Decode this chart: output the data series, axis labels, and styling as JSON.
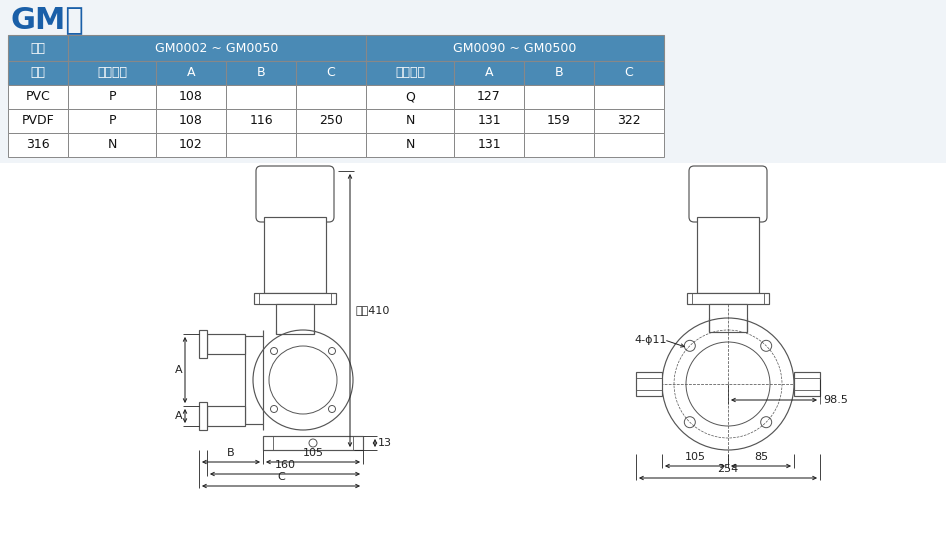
{
  "title": "GM泵",
  "title_color": "#1a5fa8",
  "title_fontsize": 22,
  "bg_color": "#f0f4f8",
  "table_header_bg": "#4a8ab5",
  "table_header_color": "#ffffff",
  "table_border_color": "#888888",
  "table_data": {
    "rows": [
      [
        "PVC",
        "P",
        "108",
        "",
        "",
        "Q",
        "127",
        "",
        ""
      ],
      [
        "PVDF",
        "P",
        "108",
        "116",
        "250",
        "N",
        "131",
        "159",
        "322"
      ],
      [
        "316",
        "N",
        "102",
        "",
        "",
        "N",
        "131",
        "",
        ""
      ]
    ]
  },
  "dim_color": "#222222",
  "dim_fontsize": 8,
  "lc": "#555555"
}
